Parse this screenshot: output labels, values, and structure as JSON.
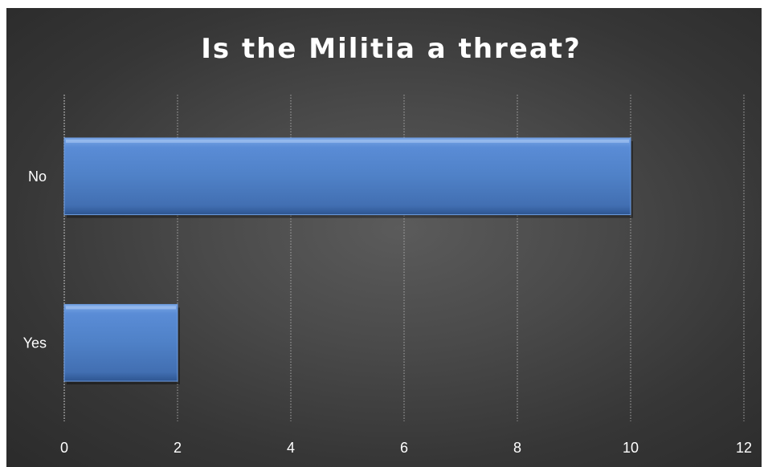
{
  "chart_data": {
    "type": "bar",
    "orientation": "horizontal",
    "title": "Is the Militia a threat?",
    "categories": [
      "No",
      "Yes"
    ],
    "values": [
      10,
      2
    ],
    "xlim": [
      0,
      12
    ],
    "xticks": [
      "0",
      "2",
      "4",
      "6",
      "8",
      "10",
      "12"
    ],
    "xlabel": "",
    "ylabel": "",
    "grid": "vertical dotted",
    "legend": "none",
    "colors": {
      "bar": "#4f81c7",
      "background": "#3a3a3a",
      "text": "#ffffff"
    }
  }
}
